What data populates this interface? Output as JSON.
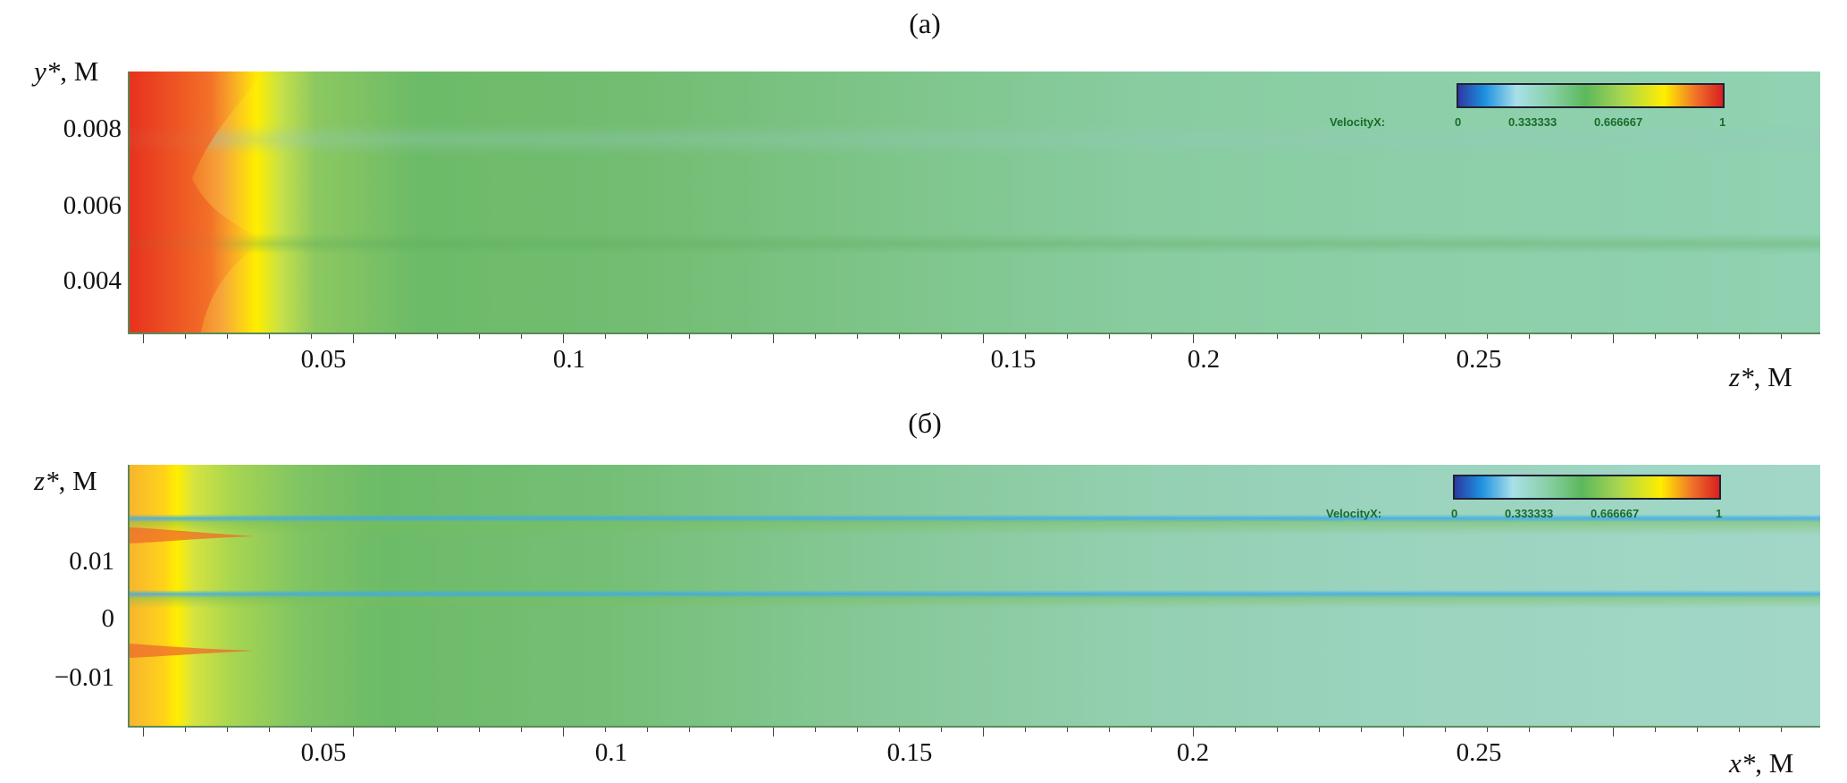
{
  "chart_data": [
    {
      "type": "heatmap",
      "panel_label": "(a)",
      "xlabel_var": "z*",
      "xlabel_unit": ", M",
      "ylabel_var": "y*",
      "ylabel_unit": ", M",
      "x_ticks": [
        "0.05",
        "0.1",
        "0.15",
        "0.2",
        "0.25"
      ],
      "x_tick_values": [
        0.05,
        0.1,
        0.15,
        0.2,
        0.25
      ],
      "y_ticks": [
        "0.008",
        "0.006",
        "0.004"
      ],
      "y_tick_values": [
        0.008,
        0.006,
        0.004
      ],
      "colorbar": {
        "title": "VelocityX:",
        "ticks": [
          "0",
          "0.333333",
          "0.666667",
          "1"
        ],
        "range": [
          0,
          1
        ]
      },
      "colormap": [
        "#2b3aa0",
        "#1e90e0",
        "#a8e0e8",
        "#5cb85c",
        "#cfe04a",
        "#ffee00",
        "#f0502a",
        "#d82020"
      ],
      "background_values": "high velocity (~1) near inlet, decaying to ~0.45 downstream"
    },
    {
      "type": "heatmap",
      "panel_label": "(б)",
      "xlabel_var": "x*",
      "xlabel_unit": ", M",
      "ylabel_var": "z*",
      "ylabel_unit": ", M",
      "x_ticks": [
        "0.05",
        "0.1",
        "0.15",
        "0.2",
        "0.25"
      ],
      "x_tick_values": [
        0.05,
        0.1,
        0.15,
        0.2,
        0.25
      ],
      "y_ticks": [
        "0.01",
        "0",
        "−0.01"
      ],
      "y_tick_values": [
        0.01,
        0,
        -0.01
      ],
      "colorbar": {
        "title": "VelocityX:",
        "ticks": [
          "0",
          "0.333333",
          "0.666667",
          "1"
        ],
        "range": [
          0,
          1
        ]
      },
      "colormap": [
        "#2b3aa0",
        "#1e90e0",
        "#a8e0e8",
        "#5cb85c",
        "#cfe04a",
        "#ffee00",
        "#f0502a",
        "#d82020"
      ]
    }
  ]
}
